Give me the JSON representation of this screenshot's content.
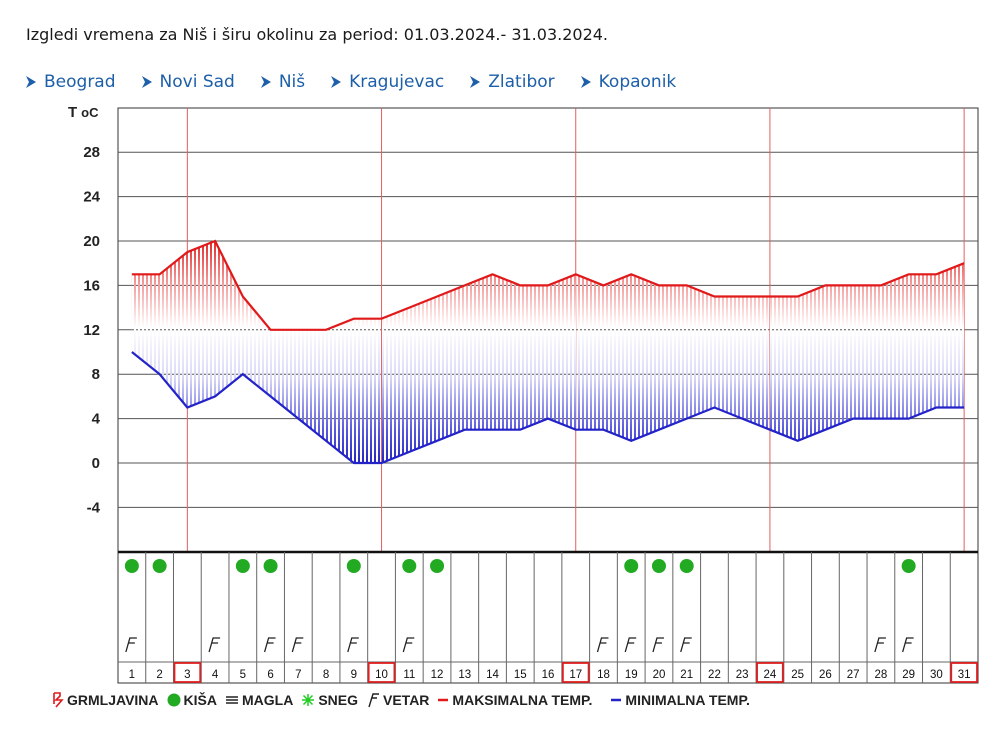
{
  "title": "Izgledi vremena za Niš i širu okolinu za period: 01.03.2024.- 31.03.2024.",
  "nav": [
    {
      "label": "Beograd"
    },
    {
      "label": "Novi Sad"
    },
    {
      "label": "Niš"
    },
    {
      "label": "Kragujevac"
    },
    {
      "label": "Zlatibor"
    },
    {
      "label": "Kopaonik"
    }
  ],
  "colors": {
    "link": "#1d5fa8",
    "max_line": "#e0191a",
    "min_line": "#2323c8",
    "rain": "#22aa22"
  },
  "chart_data": {
    "type": "area",
    "ylabel_prefix": "T",
    "ylabel_unit": "oC",
    "yticks": [
      28,
      24,
      20,
      16,
      12,
      8,
      4,
      0,
      -4
    ],
    "ylim": [
      -8,
      32
    ],
    "x": [
      1,
      2,
      3,
      4,
      5,
      6,
      7,
      8,
      9,
      10,
      11,
      12,
      13,
      14,
      15,
      16,
      17,
      18,
      19,
      20,
      21,
      22,
      23,
      24,
      25,
      26,
      27,
      28,
      29,
      30,
      31
    ],
    "highlighted_days": [
      3,
      10,
      17,
      24,
      31
    ],
    "series": [
      {
        "name": "MAKSIMALNA TEMP.",
        "values": [
          17,
          17,
          19,
          20,
          15,
          12,
          12,
          12,
          13,
          13,
          14,
          15,
          16,
          17,
          16,
          16,
          17,
          16,
          17,
          16,
          16,
          15,
          15,
          15,
          15,
          16,
          16,
          16,
          17,
          17,
          18
        ]
      },
      {
        "name": "MINIMALNA TEMP.",
        "values": [
          10,
          8,
          5,
          6,
          8,
          6,
          4,
          2,
          0,
          0,
          1,
          2,
          3,
          3,
          3,
          4,
          3,
          3,
          2,
          3,
          4,
          5,
          4,
          3,
          2,
          3,
          4,
          4,
          4,
          5,
          5
        ]
      }
    ],
    "rain_days": [
      1,
      2,
      5,
      6,
      9,
      11,
      12,
      19,
      20,
      21,
      29
    ],
    "wind_days": [
      1,
      4,
      6,
      7,
      9,
      11,
      18,
      19,
      20,
      21,
      28,
      29
    ]
  },
  "legend": [
    {
      "icon": "thunder-icon",
      "label": "GRMLJAVINA"
    },
    {
      "icon": "rain-dot-icon",
      "label": "KIŠA"
    },
    {
      "icon": "fog-icon",
      "label": "MAGLA"
    },
    {
      "icon": "snow-icon",
      "label": "SNEG"
    },
    {
      "icon": "wind-icon",
      "label": "VETAR"
    },
    {
      "icon": "max-line-icon",
      "label": "MAKSIMALNA TEMP."
    },
    {
      "icon": "min-line-icon",
      "label": "MINIMALNA TEMP."
    }
  ]
}
